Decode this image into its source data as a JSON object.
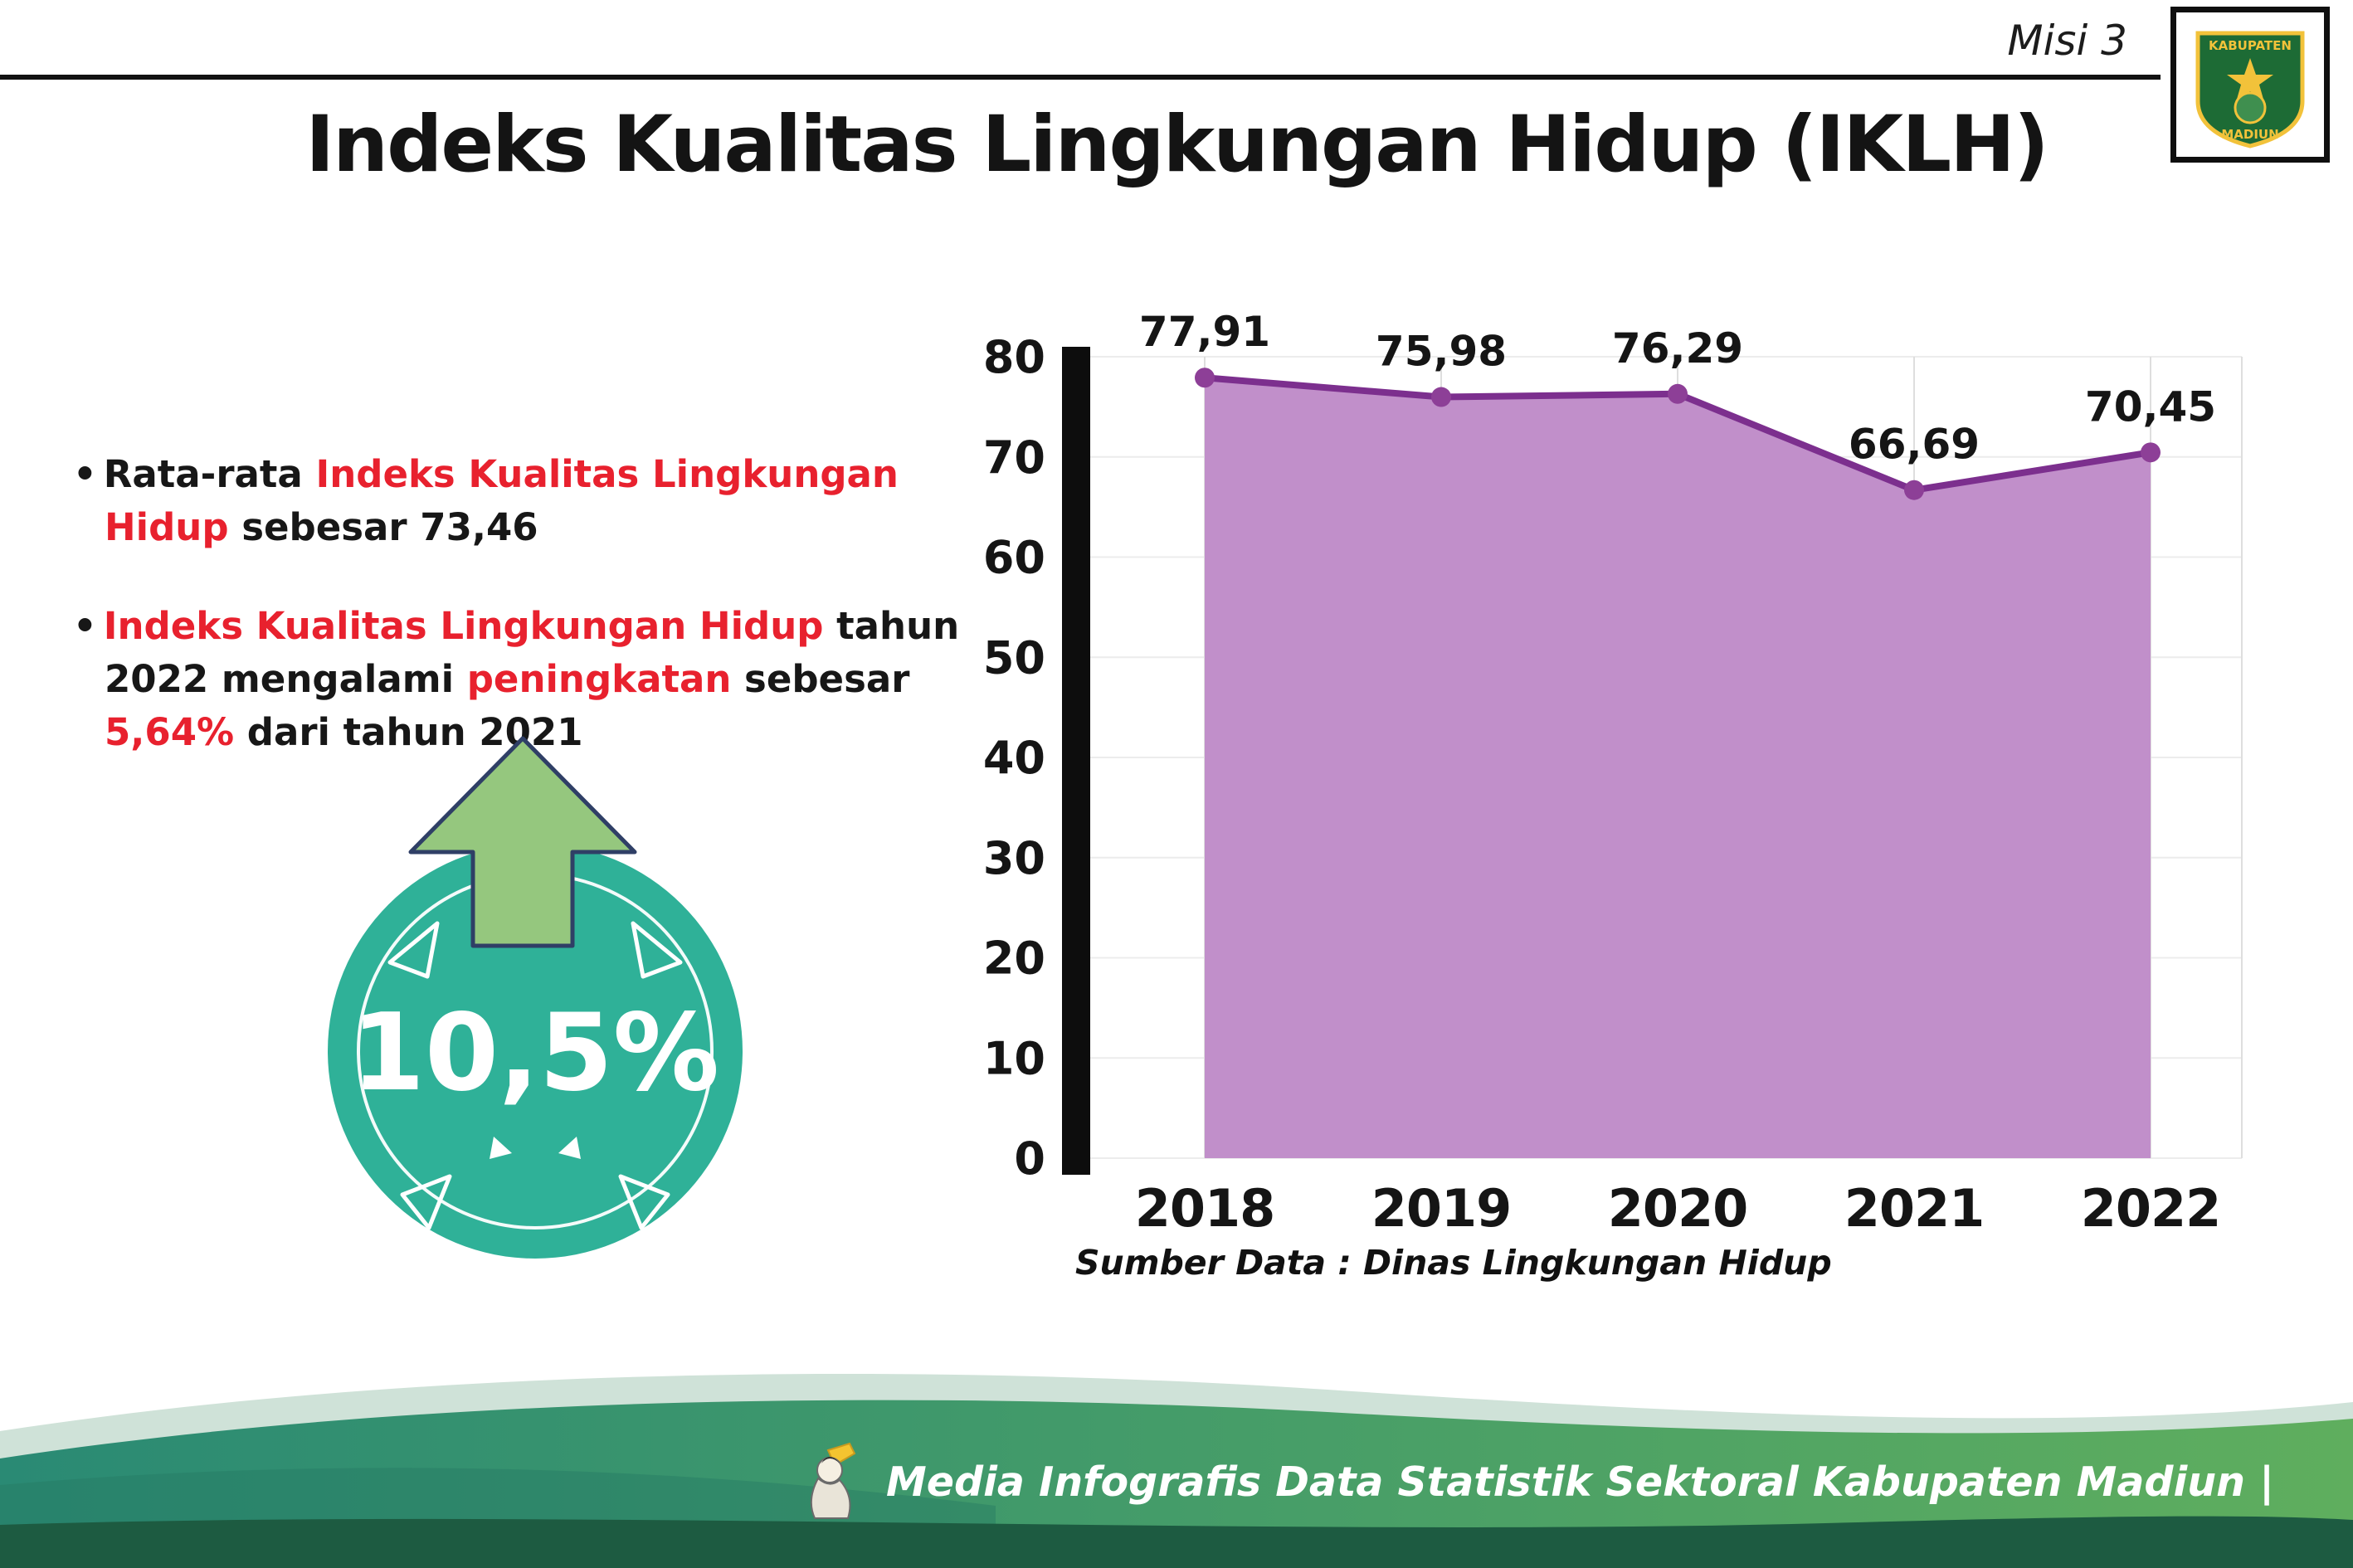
{
  "header": {
    "misi_label": "Misi 3",
    "title": "Indeks Kualitas Lingkungan Hidup (IKLH)",
    "logo": {
      "name": "kabupaten-madiun-logo",
      "top_text": "KABUPATEN",
      "bottom_text": "MADIUN"
    }
  },
  "bullets": {
    "b1_part1": "Rata-rata ",
    "b1_part2": "Indeks Kualitas Lingkungan Hidup",
    "b1_part3": " sebesar 73,46",
    "b2_part1": "Indeks Kualitas Lingkungan Hidup",
    "b2_part2": " tahun 2022 mengalami ",
    "b2_part3": "peningkatan",
    "b2_part4": " sebesar ",
    "b2_part5": "5,64%",
    "b2_part6": " dari tahun 2021"
  },
  "badge": {
    "value": "10,5%"
  },
  "chart_data": {
    "type": "area",
    "title": "",
    "categories": [
      "2018",
      "2019",
      "2020",
      "2021",
      "2022"
    ],
    "values": [
      77.91,
      75.98,
      76.29,
      66.69,
      70.45
    ],
    "point_labels": [
      "77,91",
      "75,98",
      "76,29",
      "66,69",
      "70,45"
    ],
    "ylim": [
      0,
      80
    ],
    "yticks": [
      0,
      10,
      20,
      30,
      40,
      50,
      60,
      70,
      80
    ],
    "grid": "light",
    "legend": "none",
    "source_note": "Sumber Data : Dinas Lingkungan Hidup",
    "colors": {
      "area_fill": "#c18fca",
      "line": "#7c2f8e",
      "point": "#8d3f97",
      "axis": "#0d0d0d",
      "gridline": "#dedede"
    }
  },
  "footer": {
    "caption": "Media Infografis Data Statistik Sektoral Kabupaten Madiun |"
  },
  "colors": {
    "accent_red": "#e8212e",
    "badge_teal": "#2fb198",
    "arrow_green": "#95c77e",
    "footer_band_start": "#2a8a74",
    "footer_band_end": "#5fae5e",
    "footer_dark_strip": "#1d5b41"
  }
}
